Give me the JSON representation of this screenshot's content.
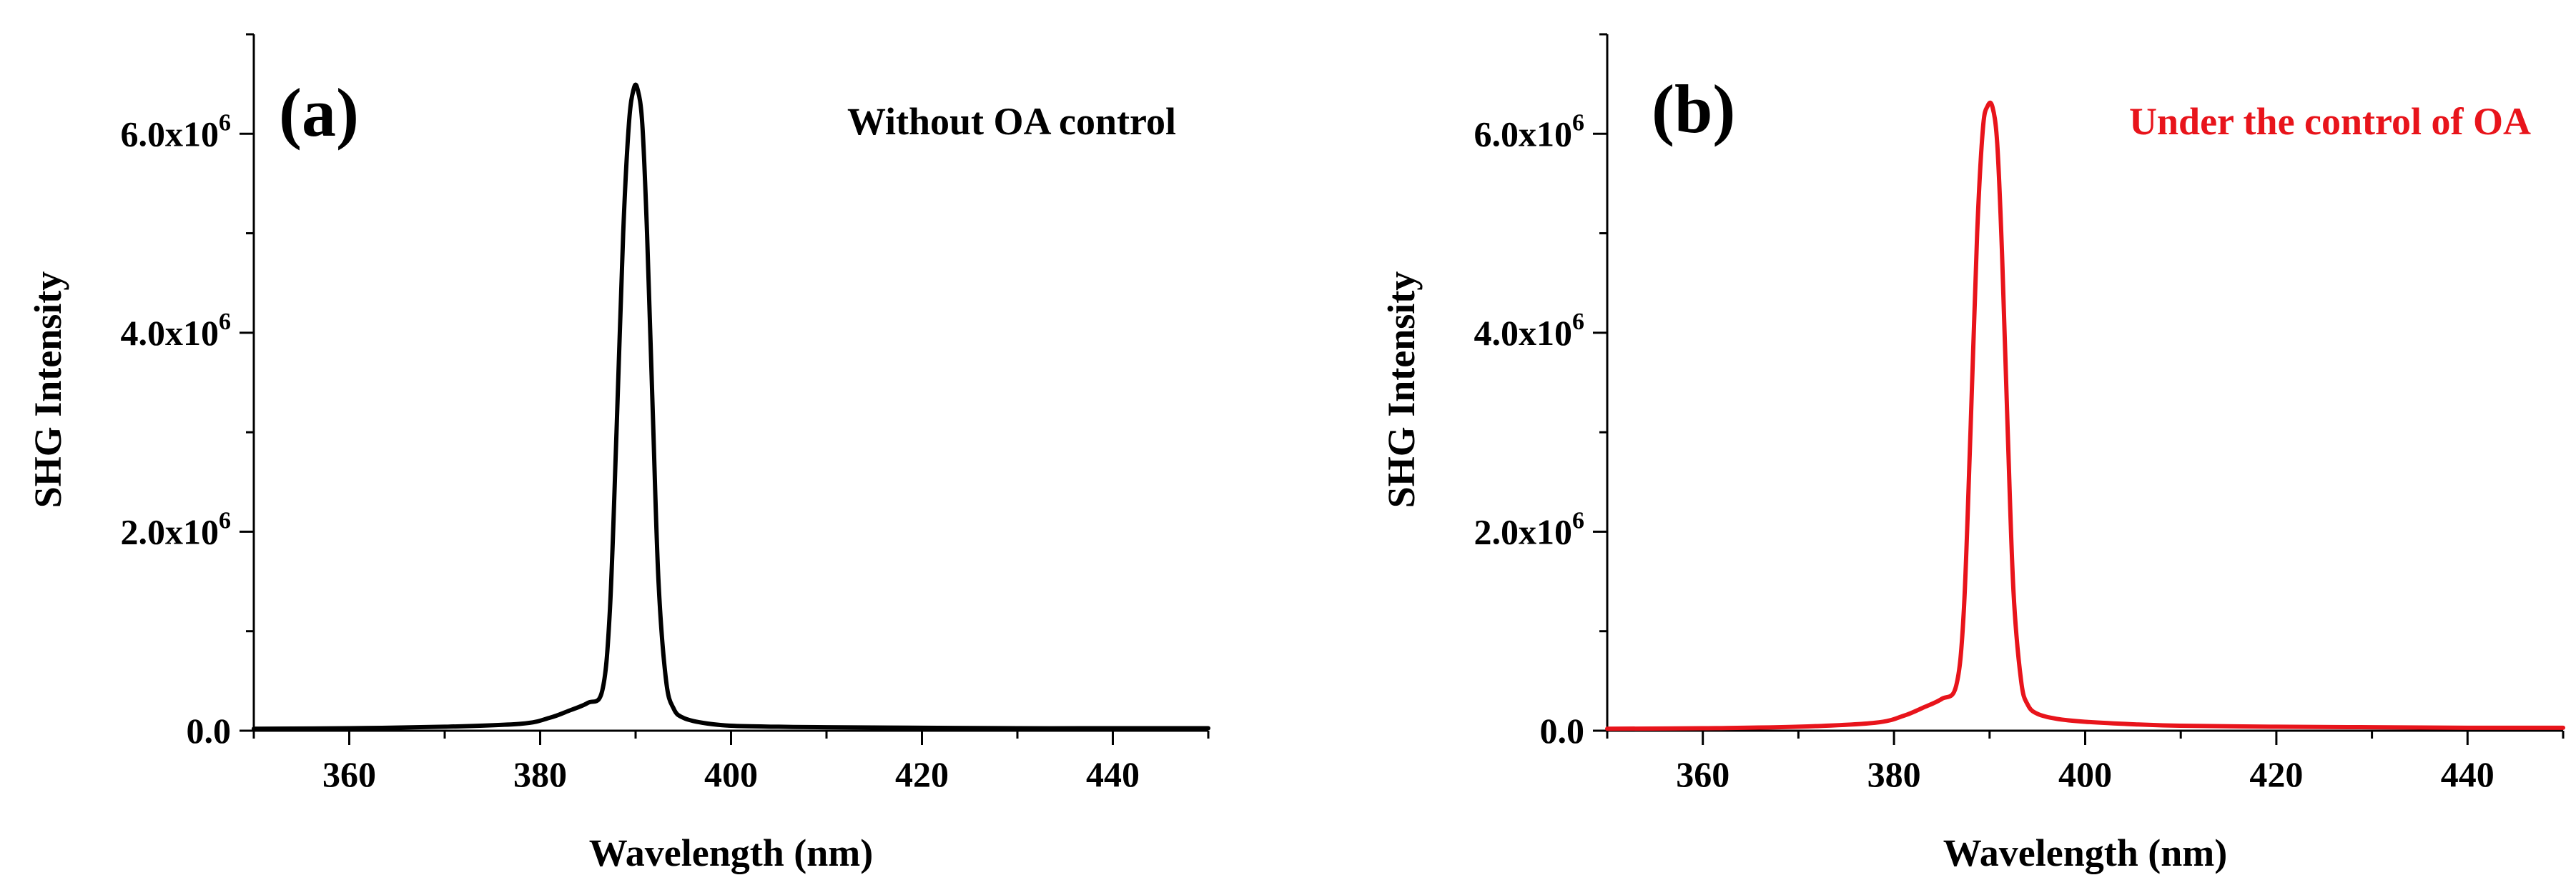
{
  "chart_data": [
    {
      "type": "line",
      "panel_label": "(a)",
      "annotation": "Without OA control",
      "annotation_color": "#000000",
      "line_color": "#000000",
      "xlabel": "Wavelength (nm)",
      "ylabel": "SHG Intensity",
      "xlim": [
        350,
        450
      ],
      "ylim": [
        0,
        7000000
      ],
      "xticks": [
        360,
        380,
        400,
        420,
        440
      ],
      "xtick_labels": [
        "360",
        "380",
        "400",
        "420",
        "440"
      ],
      "yticks": [
        0,
        2000000,
        4000000,
        6000000
      ],
      "ytick_labels": [
        {
          "base": "0.0",
          "exp": ""
        },
        {
          "base": "2.0x10",
          "exp": "6"
        },
        {
          "base": "4.0x10",
          "exp": "6"
        },
        {
          "base": "6.0x10",
          "exp": "6"
        }
      ],
      "series": [
        {
          "name": "Without OA control",
          "x": [
            350,
            360,
            370,
            378,
            381,
            383,
            385,
            386.5,
            387.3,
            388,
            388.7,
            389.3,
            389.8,
            390.2,
            390.7,
            391.2,
            391.8,
            392.4,
            393.2,
            394,
            395,
            397,
            400,
            405,
            410,
            420,
            430,
            440,
            450
          ],
          "y": [
            20000,
            25000,
            40000,
            70000,
            130000,
            200000,
            280000,
            400000,
            1200000,
            3000000,
            5000000,
            6100000,
            6450000,
            6450000,
            6100000,
            5000000,
            3200000,
            1500000,
            500000,
            220000,
            130000,
            80000,
            50000,
            40000,
            35000,
            30000,
            25000,
            25000,
            25000
          ]
        }
      ]
    },
    {
      "type": "line",
      "panel_label": "(b)",
      "annotation": "Under the control of OA",
      "annotation_color": "#e8141b",
      "line_color": "#e8141b",
      "xlabel": "Wavelength (nm)",
      "ylabel": "SHG Intensity",
      "xlim": [
        350,
        450
      ],
      "ylim": [
        0,
        7000000
      ],
      "xticks": [
        360,
        380,
        400,
        420,
        440
      ],
      "xtick_labels": [
        "360",
        "380",
        "400",
        "420",
        "440"
      ],
      "yticks": [
        0,
        2000000,
        4000000,
        6000000
      ],
      "ytick_labels": [
        {
          "base": "0.0",
          "exp": ""
        },
        {
          "base": "2.0x10",
          "exp": "6"
        },
        {
          "base": "4.0x10",
          "exp": "6"
        },
        {
          "base": "6.0x10",
          "exp": "6"
        }
      ],
      "series": [
        {
          "name": "Under the control of OA",
          "x": [
            350,
            360,
            370,
            378,
            381,
            383,
            385,
            386.5,
            387.3,
            388,
            388.7,
            389.3,
            389.8,
            390.3,
            390.8,
            391.3,
            391.9,
            392.5,
            393.3,
            394,
            395,
            397,
            400,
            405,
            410,
            420,
            430,
            440,
            450
          ],
          "y": [
            20000,
            25000,
            40000,
            80000,
            150000,
            230000,
            320000,
            450000,
            1200000,
            3000000,
            5000000,
            6050000,
            6280000,
            6270000,
            5900000,
            4800000,
            3000000,
            1400000,
            500000,
            260000,
            170000,
            120000,
            90000,
            65000,
            50000,
            40000,
            35000,
            30000,
            30000
          ]
        }
      ]
    }
  ]
}
